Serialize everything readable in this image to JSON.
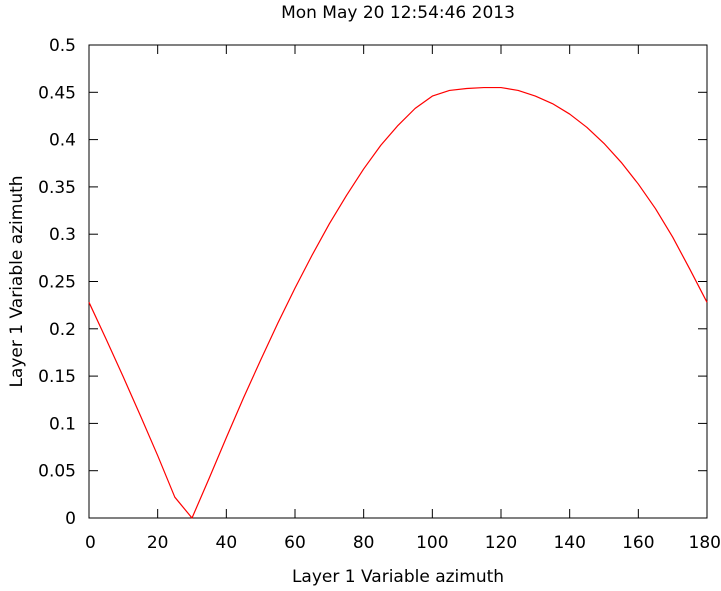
{
  "chart_data": {
    "type": "line",
    "title": "Mon May 20 12:54:46 2013",
    "xlabel": "Layer 1 Variable azimuth",
    "ylabel": "Layer 1 Variable azimuth",
    "xlim": [
      0,
      180
    ],
    "ylim": [
      0,
      0.5
    ],
    "xticks": [
      "0",
      "20",
      "40",
      "60",
      "80",
      "100",
      "120",
      "140",
      "160",
      "180"
    ],
    "yticks": [
      "0",
      "0.05",
      "0.1",
      "0.15",
      "0.2",
      "0.25",
      "0.3",
      "0.35",
      "0.4",
      "0.45",
      "0.5"
    ],
    "grid": false,
    "legend": "none",
    "series": [
      {
        "color": "#ff0000",
        "x": [
          0,
          5,
          10,
          15,
          20,
          25,
          30,
          35,
          40,
          45,
          50,
          55,
          60,
          65,
          70,
          75,
          80,
          85,
          90,
          95,
          100,
          105,
          110,
          115,
          120,
          125,
          130,
          135,
          140,
          145,
          150,
          155,
          160,
          165,
          170,
          175,
          180
        ],
        "y": [
          0.228,
          0.189,
          0.149,
          0.108,
          0.066,
          0.022,
          0.0,
          0.042,
          0.085,
          0.127,
          0.167,
          0.206,
          0.243,
          0.278,
          0.311,
          0.341,
          0.369,
          0.394,
          0.415,
          0.433,
          0.446,
          0.452,
          0.454,
          0.455,
          0.455,
          0.452,
          0.446,
          0.438,
          0.427,
          0.413,
          0.396,
          0.376,
          0.353,
          0.327,
          0.297,
          0.263,
          0.228
        ]
      }
    ]
  }
}
